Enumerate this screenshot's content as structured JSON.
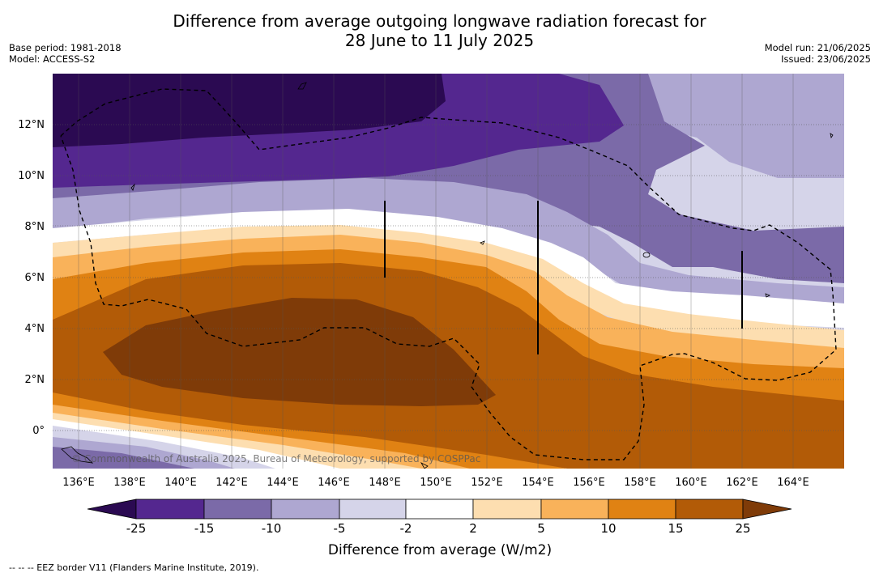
{
  "title_line1": "Difference from average outgoing longwave radiation forecast for",
  "title_line2": "28 June to 11 July 2025",
  "base_period": "Base period: 1981-2018",
  "model": "Model: ACCESS-S2",
  "model_run": "Model run: 21/06/2025",
  "issued": "Issued: 23/06/2025",
  "copyright": "© Commonwealth of Australia 2025, Bureau of Meteorology, supported by COSPPac",
  "footnote": "-- -- -- EEZ border V11 (Flanders Marine Institute, 2019).",
  "map": {
    "lat_labels": [
      "12°N",
      "10°N",
      "8°N",
      "6°N",
      "4°N",
      "2°N",
      "0°"
    ],
    "lat_values": [
      12,
      10,
      8,
      6,
      4,
      2,
      0
    ],
    "lon_labels": [
      "136°E",
      "138°E",
      "140°E",
      "142°E",
      "144°E",
      "146°E",
      "148°E",
      "150°E",
      "152°E",
      "154°E",
      "156°E",
      "158°E",
      "160°E",
      "162°E",
      "164°E"
    ],
    "lon_values": [
      136,
      138,
      140,
      142,
      144,
      146,
      148,
      150,
      152,
      154,
      156,
      158,
      160,
      162,
      164
    ],
    "lon_range": [
      135,
      166
    ],
    "lat_range": [
      -1.5,
      14
    ]
  },
  "colorbar": {
    "title": "Difference from average (W/m2)",
    "ticks": [
      "-25",
      "-15",
      "-10",
      "-5",
      "-2",
      "2",
      "5",
      "10",
      "15",
      "25"
    ],
    "colors": [
      "#2b0a52",
      "#54278f",
      "#7b6aa8",
      "#aea7d1",
      "#d5d4e9",
      "#ffffff",
      "#fddeb0",
      "#f9b25a",
      "#e08213",
      "#b25b07",
      "#7f3b08"
    ]
  }
}
